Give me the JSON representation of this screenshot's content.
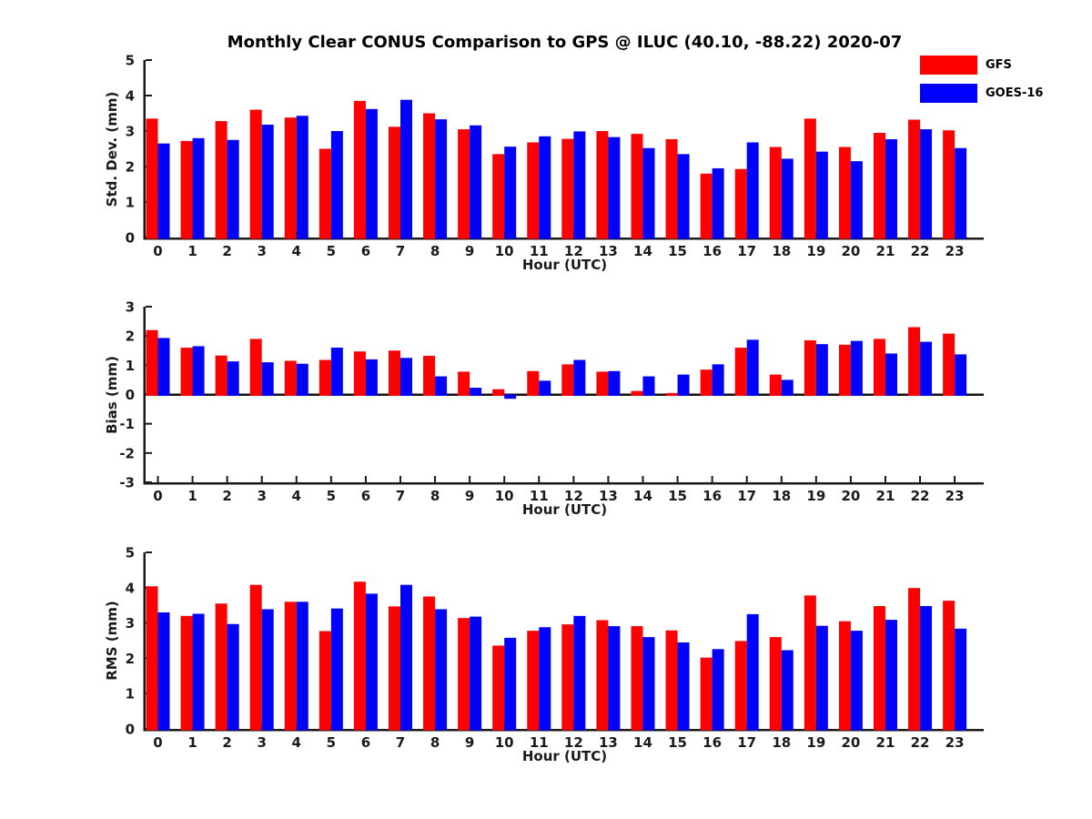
{
  "chart_data": {
    "type": "bar",
    "title": "Monthly Clear CONUS Comparison to GPS @ ILUC (40.10, -88.22) 2020-07",
    "xlabel": "Hour (UTC)",
    "categories": [
      0,
      1,
      2,
      3,
      4,
      5,
      6,
      7,
      8,
      9,
      10,
      11,
      12,
      13,
      14,
      15,
      16,
      17,
      18,
      19,
      20,
      21,
      22,
      23
    ],
    "legend_position": "upper right",
    "grid": false,
    "colors": {
      "gfs": "#ff0000",
      "goes16": "#0000ff",
      "axis": "#1a1a1a",
      "background": "#ffffff"
    },
    "legend": [
      {
        "name": "GFS",
        "color": "#ff0000"
      },
      {
        "name": "GOES-16",
        "color": "#0000ff"
      }
    ],
    "subplots": [
      {
        "ylabel": "Std. Dev. (mm)",
        "ylim": [
          0,
          5
        ],
        "yticks": [
          0,
          1,
          2,
          3,
          4,
          5
        ],
        "series": [
          {
            "name": "GFS",
            "values": [
              3.35,
              2.72,
              3.28,
              3.6,
              3.38,
              2.5,
              3.85,
              3.12,
              3.5,
              3.05,
              2.35,
              2.68,
              2.78,
              3.0,
              2.92,
              2.77,
              1.8,
              1.93,
              2.55,
              3.35,
              2.55,
              2.95,
              3.32,
              3.02
            ]
          },
          {
            "name": "GOES-16",
            "values": [
              2.65,
              2.8,
              2.75,
              3.18,
              3.43,
              3.0,
              3.62,
              3.88,
              3.33,
              3.16,
              2.56,
              2.85,
              2.99,
              2.83,
              2.52,
              2.35,
              1.95,
              2.68,
              2.22,
              2.42,
              2.15,
              2.77,
              3.05,
              2.52
            ]
          }
        ]
      },
      {
        "ylabel": "Bias (mm)",
        "ylim": [
          -3,
          3
        ],
        "yticks": [
          -3,
          -2,
          -1,
          0,
          1,
          2,
          3
        ],
        "series": [
          {
            "name": "GFS",
            "values": [
              2.2,
              1.6,
              1.33,
              1.9,
              1.15,
              1.18,
              1.47,
              1.5,
              1.32,
              0.78,
              0.18,
              0.8,
              1.03,
              0.78,
              0.12,
              0.05,
              0.85,
              1.6,
              0.68,
              1.85,
              1.7,
              1.9,
              2.3,
              2.08
            ]
          },
          {
            "name": "GOES-16",
            "values": [
              1.93,
              1.65,
              1.13,
              1.1,
              1.05,
              1.6,
              1.2,
              1.25,
              0.62,
              0.23,
              -0.1,
              0.47,
              1.18,
              0.8,
              0.62,
              0.68,
              1.03,
              1.87,
              0.5,
              1.72,
              1.83,
              1.4,
              1.8,
              1.37
            ]
          }
        ]
      },
      {
        "ylabel": "RMS (mm)",
        "ylim": [
          0,
          5
        ],
        "yticks": [
          0,
          1,
          2,
          3,
          4,
          5
        ],
        "series": [
          {
            "name": "GFS",
            "values": [
              4.04,
              3.2,
              3.55,
              4.08,
              3.6,
              2.77,
              4.17,
              3.47,
              3.75,
              3.14,
              2.36,
              2.78,
              2.96,
              3.08,
              2.91,
              2.79,
              2.02,
              2.49,
              2.6,
              3.78,
              3.05,
              3.48,
              3.99,
              3.63
            ]
          },
          {
            "name": "GOES-16",
            "values": [
              3.3,
              3.26,
              2.97,
              3.39,
              3.6,
              3.41,
              3.83,
              4.08,
              3.39,
              3.18,
              2.58,
              2.88,
              3.2,
              2.91,
              2.6,
              2.45,
              2.26,
              3.25,
              2.23,
              2.92,
              2.78,
              3.09,
              3.48,
              2.84
            ]
          }
        ]
      }
    ]
  }
}
